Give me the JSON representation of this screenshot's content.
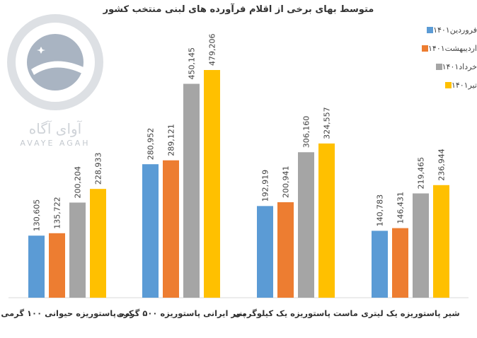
{
  "chart_data": {
    "type": "bar",
    "title": "متوسط بهای برخی از اقلام فرآورده های لبنی منتخب کشور",
    "categories": [
      "کره پاستوریزه حیوانی ۱۰۰ گرمی",
      "پنیر ایرانی پاستوریزه ۵۰۰ گرمی",
      "ماست پاستوریزه یک کیلوگرمی",
      "شیر پاستوریزه یک لیتری"
    ],
    "series": [
      {
        "name": "فروردین۱۴۰۱",
        "color": "#5b9bd5",
        "values": [
          130605,
          280952,
          192919,
          140783
        ]
      },
      {
        "name": "اردیبهشت۱۴۰۱",
        "color": "#ed7d31",
        "values": [
          135722,
          289121,
          200941,
          146431
        ]
      },
      {
        "name": "خرداد۱۴۰۱",
        "color": "#a5a5a5",
        "values": [
          200204,
          450145,
          306160,
          219465
        ]
      },
      {
        "name": "تیر۱۴۰۱",
        "color": "#ffc000",
        "values": [
          228933,
          479206,
          324557,
          236944
        ]
      }
    ],
    "data_labels": [
      [
        "130,605",
        "280,952",
        "192,919",
        "140,783"
      ],
      [
        "135,722",
        "289,121",
        "200,941",
        "146,431"
      ],
      [
        "200,204",
        "450,145",
        "306,160",
        "219,465"
      ],
      [
        "228,933",
        "479,206",
        "324,557",
        "236,944"
      ]
    ],
    "ylim": [
      0,
      600000
    ],
    "legend_position": "top-right",
    "grid": false
  },
  "watermark": {
    "brand": "آوای آگاه",
    "latin": "AVAYE AGAH",
    "icon": "avaye-agah-logo-icon"
  }
}
